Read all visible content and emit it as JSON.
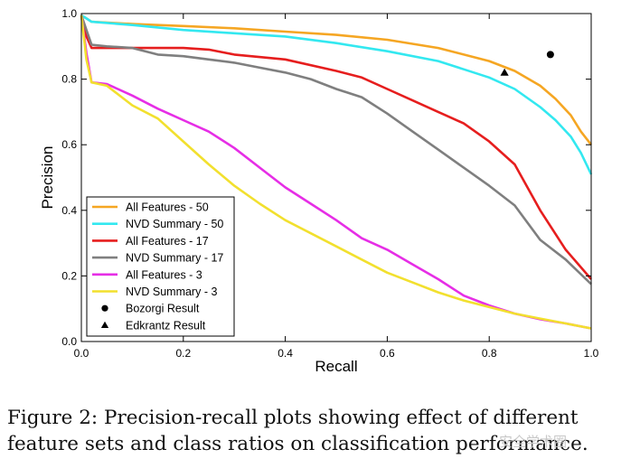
{
  "chart_data": {
    "type": "line",
    "title": "",
    "xlabel": "Recall",
    "ylabel": "Precision",
    "xlim": [
      0.0,
      1.0
    ],
    "ylim": [
      0.0,
      1.0
    ],
    "xticks": [
      "0.0",
      "0.2",
      "0.4",
      "0.6",
      "0.8",
      "1.0"
    ],
    "yticks": [
      "0.0",
      "0.2",
      "0.4",
      "0.6",
      "0.8",
      "1.0"
    ],
    "grid": false,
    "legend_position": "lower-left",
    "series": [
      {
        "name": "All Features - 50",
        "color": "#f5a623",
        "x": [
          0,
          0.01,
          0.02,
          0.1,
          0.2,
          0.3,
          0.4,
          0.5,
          0.6,
          0.7,
          0.8,
          0.85,
          0.9,
          0.93,
          0.96,
          0.98,
          1.0
        ],
        "y": [
          0.995,
          0.985,
          0.975,
          0.968,
          0.962,
          0.955,
          0.945,
          0.935,
          0.92,
          0.895,
          0.855,
          0.825,
          0.78,
          0.74,
          0.69,
          0.64,
          0.6
        ]
      },
      {
        "name": "NVD Summary - 50",
        "color": "#33e8f0",
        "x": [
          0,
          0.01,
          0.02,
          0.1,
          0.2,
          0.3,
          0.4,
          0.5,
          0.6,
          0.7,
          0.75,
          0.8,
          0.85,
          0.9,
          0.93,
          0.96,
          0.98,
          1.0
        ],
        "y": [
          0.995,
          0.985,
          0.975,
          0.965,
          0.95,
          0.94,
          0.93,
          0.91,
          0.885,
          0.855,
          0.83,
          0.805,
          0.77,
          0.715,
          0.675,
          0.625,
          0.575,
          0.51
        ]
      },
      {
        "name": "All Features - 17",
        "color": "#e61e1e",
        "x": [
          0,
          0.01,
          0.02,
          0.1,
          0.2,
          0.25,
          0.3,
          0.4,
          0.5,
          0.55,
          0.6,
          0.65,
          0.7,
          0.75,
          0.8,
          0.85,
          0.9,
          0.95,
          1.0
        ],
        "y": [
          0.99,
          0.93,
          0.895,
          0.895,
          0.895,
          0.89,
          0.875,
          0.86,
          0.825,
          0.805,
          0.77,
          0.735,
          0.7,
          0.665,
          0.61,
          0.54,
          0.4,
          0.28,
          0.19
        ]
      },
      {
        "name": "NVD Summary - 17",
        "color": "#7f7f7f",
        "x": [
          0,
          0.01,
          0.02,
          0.05,
          0.1,
          0.15,
          0.2,
          0.25,
          0.3,
          0.35,
          0.4,
          0.45,
          0.5,
          0.55,
          0.6,
          0.65,
          0.7,
          0.75,
          0.8,
          0.85,
          0.9,
          0.95,
          1.0
        ],
        "y": [
          0.995,
          0.95,
          0.905,
          0.9,
          0.895,
          0.875,
          0.87,
          0.86,
          0.85,
          0.835,
          0.82,
          0.8,
          0.77,
          0.745,
          0.695,
          0.64,
          0.585,
          0.53,
          0.475,
          0.415,
          0.31,
          0.25,
          0.175
        ]
      },
      {
        "name": "All Features - 3",
        "color": "#e62ee6",
        "x": [
          0,
          0.01,
          0.02,
          0.05,
          0.1,
          0.15,
          0.2,
          0.25,
          0.3,
          0.35,
          0.4,
          0.45,
          0.5,
          0.55,
          0.6,
          0.65,
          0.7,
          0.75,
          0.8,
          0.85,
          0.9,
          0.95,
          1.0
        ],
        "y": [
          0.995,
          0.88,
          0.79,
          0.785,
          0.75,
          0.71,
          0.675,
          0.64,
          0.59,
          0.53,
          0.47,
          0.42,
          0.37,
          0.315,
          0.28,
          0.235,
          0.19,
          0.14,
          0.11,
          0.085,
          0.068,
          0.055,
          0.04
        ]
      },
      {
        "name": "NVD Summary - 3",
        "color": "#f2e02e",
        "x": [
          0,
          0.01,
          0.02,
          0.05,
          0.1,
          0.15,
          0.2,
          0.25,
          0.3,
          0.35,
          0.4,
          0.45,
          0.5,
          0.55,
          0.6,
          0.65,
          0.7,
          0.75,
          0.8,
          0.85,
          0.9,
          0.95,
          1.0
        ],
        "y": [
          0.995,
          0.86,
          0.79,
          0.78,
          0.72,
          0.68,
          0.61,
          0.54,
          0.475,
          0.42,
          0.37,
          0.33,
          0.29,
          0.25,
          0.21,
          0.18,
          0.15,
          0.125,
          0.105,
          0.085,
          0.07,
          0.055,
          0.04
        ]
      }
    ],
    "markers": [
      {
        "name": "Bozorgi Result",
        "shape": "circle",
        "x": 0.92,
        "y": 0.875
      },
      {
        "name": "Edkrantz Result",
        "shape": "triangle",
        "x": 0.83,
        "y": 0.82
      }
    ]
  },
  "caption": {
    "line1": "Figure 2:  Precision-recall plots showing effect of different",
    "line2": "feature sets and class ratios on classification performance."
  },
  "watermark": "安全学术圈"
}
